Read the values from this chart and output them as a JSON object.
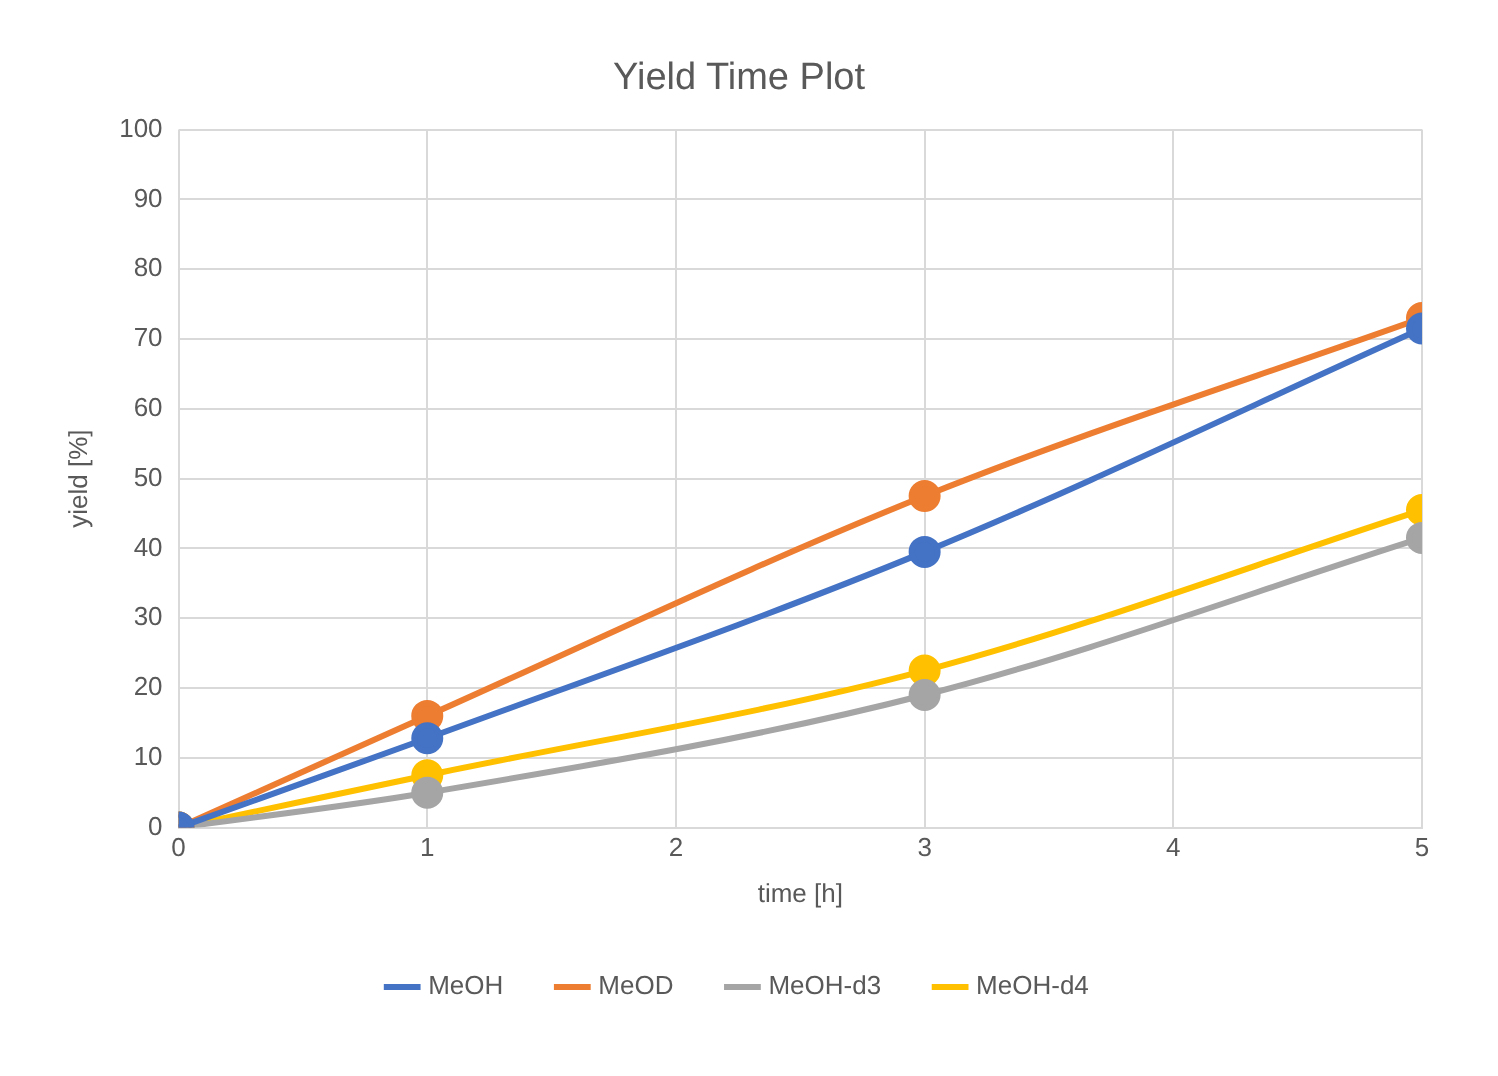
{
  "chart_data": {
    "type": "line",
    "title": "Yield Time Plot",
    "xlabel": "time [h]",
    "ylabel": "yield [%]",
    "x": [
      0,
      1,
      3,
      5
    ],
    "series": [
      {
        "name": "MeOH",
        "color": "#4472c4",
        "values": [
          0,
          12.8,
          39.5,
          71.5
        ]
      },
      {
        "name": "MeOD",
        "color": "#ed7d31",
        "values": [
          0,
          16,
          47.5,
          73
        ]
      },
      {
        "name": "MeOH-d3",
        "color": "#a5a5a5",
        "values": [
          0,
          5,
          19,
          41.5
        ]
      },
      {
        "name": "MeOH-d4",
        "color": "#ffc000",
        "values": [
          0,
          7.5,
          22.5,
          45.5
        ]
      }
    ],
    "xlim": [
      0,
      5
    ],
    "xticks": [
      0,
      1,
      2,
      3,
      4,
      5
    ],
    "ylim": [
      0,
      100
    ],
    "yticks": [
      0,
      10,
      20,
      30,
      40,
      50,
      60,
      70,
      80,
      90,
      100
    ],
    "grid": true,
    "legend": "bottom",
    "marker": "circle",
    "line_style": "solid"
  }
}
